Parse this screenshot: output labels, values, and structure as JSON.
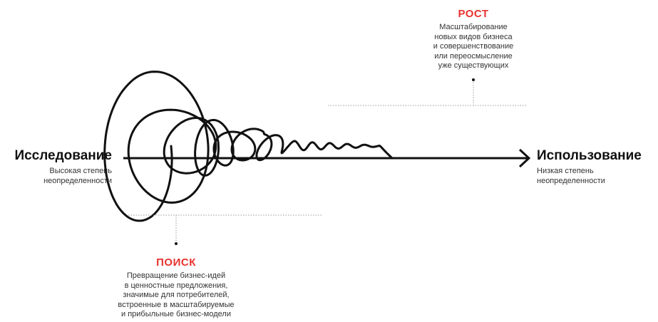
{
  "start": {
    "title": "Исследование",
    "subtitle_lines": [
      "Высокая степень",
      "неопределенности"
    ]
  },
  "end": {
    "title": "Использование",
    "subtitle_lines": [
      "Низкая степень",
      "неопределенности"
    ]
  },
  "growth": {
    "title": "РОСТ",
    "lines": [
      "Масштабирование",
      "новых видов бизнеса",
      "и совершенствование",
      "или переосмысление",
      "уже существующих"
    ]
  },
  "search": {
    "title": "ПОИСК",
    "lines": [
      "Превращение бизнес-идей",
      "в ценностные предложения,",
      "значимые для потребителей,",
      "встроенные в масштабируемые",
      "и прибыльные бизнес-модели"
    ]
  },
  "colors": {
    "accent": "#e8322d",
    "line": "#111111",
    "dotted": "#9a9a9a"
  }
}
